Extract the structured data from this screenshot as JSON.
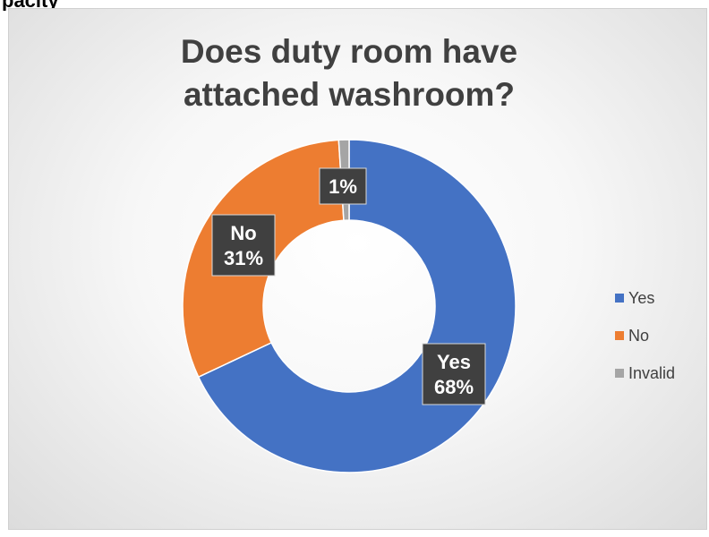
{
  "header_fragment": "pacity",
  "chart_data": {
    "type": "pie",
    "variant": "donut",
    "title": "Does duty room have attached washroom?",
    "categories": [
      "Yes",
      "No",
      "Invalid"
    ],
    "values": [
      68,
      31,
      1
    ],
    "unit": "%",
    "data_labels": [
      "Yes\n68%",
      "No\n31%",
      "1%"
    ],
    "colors": [
      "#4472c4",
      "#ed7d31",
      "#a5a5a5"
    ],
    "legend": {
      "position": "right",
      "entries": [
        "Yes",
        "No",
        "Invalid"
      ]
    }
  }
}
